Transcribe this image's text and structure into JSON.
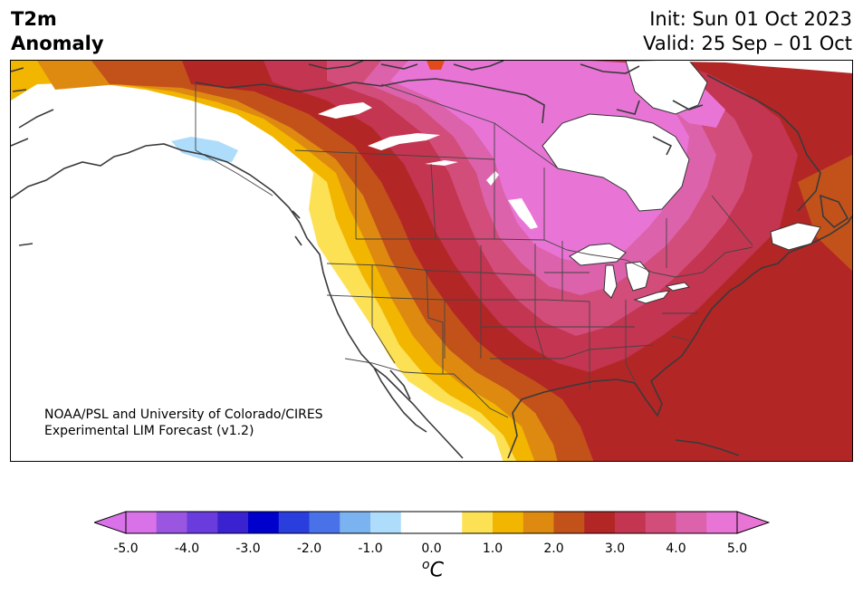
{
  "title": {
    "variable_line1": "T2m",
    "variable_line2": "Anomaly",
    "init": "Init: Sun 01 Oct 2023",
    "valid": "Valid: 25 Sep – 01 Oct"
  },
  "credit": {
    "line1": "NOAA/PSL and University of Colorado/CIRES",
    "line2": "Experimental LIM Forecast (v1.2)"
  },
  "colorbar": {
    "unit_sup": "o",
    "unit_main": "C",
    "ticks": [
      "-5.0",
      "-4.0",
      "-3.0",
      "-2.0",
      "-1.0",
      "0.0",
      "1.0",
      "2.0",
      "3.0",
      "4.0",
      "5.0"
    ],
    "colors": [
      "#d971e8",
      "#9a55e1",
      "#6a3cdd",
      "#3a22d0",
      "#0000cc",
      "#2a3ede",
      "#4a72e8",
      "#7bb2f0",
      "#aedcfb",
      "#ffffff",
      "#ffffff",
      "#fde155",
      "#f2b600",
      "#de8a10",
      "#c2521a",
      "#b32626",
      "#c33550",
      "#d24d7a",
      "#dc62ac",
      "#e875d6"
    ],
    "extend_low_color": "#d971e8",
    "extend_high_color": "#e875d6"
  }
}
